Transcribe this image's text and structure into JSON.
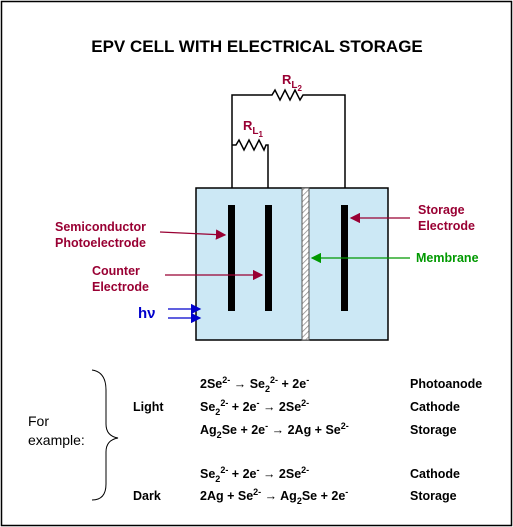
{
  "title": "EPV CELL WITH ELECTRICAL STORAGE",
  "resistors": [
    {
      "base": "R",
      "sub": "L",
      "subsub": "2"
    },
    {
      "base": "R",
      "sub": "L",
      "subsub": "1"
    }
  ],
  "labels": {
    "photoelectrode": [
      "Semiconductor",
      "Photoelectrode"
    ],
    "counter": [
      "Counter",
      "Electrode"
    ],
    "storage": [
      "Storage",
      "Electrode"
    ],
    "membrane": "Membrane",
    "light_input": "hν"
  },
  "example": {
    "label": [
      "For",
      "example:"
    ],
    "conditions": [
      "Light",
      "Dark"
    ],
    "reactions": [
      {
        "equation": [
          {
            "text": "2Se",
            "sup": "2-"
          },
          {
            "text": " → Se",
            "sub": "2",
            "sup": "2-"
          },
          {
            "text": " + 2e",
            "sup": "-"
          }
        ],
        "role": "Photoanode"
      },
      {
        "equation": [
          {
            "text": "Se",
            "sub": "2",
            "sup": "2-"
          },
          {
            "text": " + 2e",
            "sup": "-"
          },
          {
            "text": " → 2Se",
            "sup": "2-"
          }
        ],
        "role": "Cathode"
      },
      {
        "equation": [
          {
            "text": "Ag",
            "sub": "2"
          },
          {
            "text": "Se + 2e",
            "sup": "-"
          },
          {
            "text": " → 2Ag + Se",
            "sup": "2-"
          }
        ],
        "role": "Storage"
      },
      {
        "equation": [
          {
            "text": "Se",
            "sub": "2",
            "sup": "2-"
          },
          {
            "text": " + 2e",
            "sup": "-"
          },
          {
            "text": " → 2Se",
            "sup": "2-"
          }
        ],
        "role": "Cathode"
      },
      {
        "equation": [
          {
            "text": "2Ag + Se",
            "sup": "2-"
          },
          {
            "text": " → Ag",
            "sub": "2"
          },
          {
            "text": "Se + 2e",
            "sup": "-"
          }
        ],
        "role": "Storage"
      }
    ]
  }
}
